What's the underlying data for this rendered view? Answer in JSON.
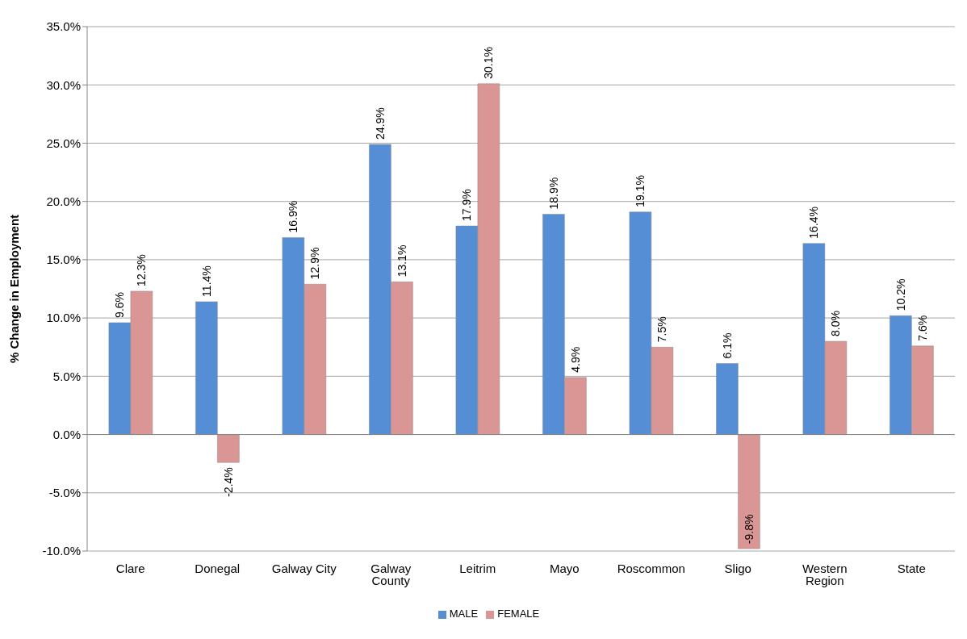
{
  "chart_data": {
    "type": "bar",
    "ylabel": "% Change in Employment",
    "categories": [
      "Clare",
      "Donegal",
      "Galway City",
      "Galway County",
      "Leitrim",
      "Mayo",
      "Roscommon",
      "Sligo",
      "Western Region",
      "State"
    ],
    "series": [
      {
        "name": "MALE",
        "color": "#558ed5",
        "values": [
          9.6,
          11.4,
          16.9,
          24.9,
          17.9,
          18.9,
          19.1,
          6.1,
          16.4,
          10.2
        ],
        "value_labels": [
          "9.6%",
          "11.4%",
          "16.9%",
          "24.9%",
          "17.9%",
          "18.9%",
          "19.1%",
          "6.1%",
          "16.4%",
          "10.2%"
        ]
      },
      {
        "name": "FEMALE",
        "color": "#d99694",
        "values": [
          12.3,
          -2.4,
          12.9,
          13.1,
          30.1,
          4.9,
          7.5,
          -9.8,
          8.0,
          7.6
        ],
        "value_labels": [
          "12.3%",
          "-2.4%",
          "12.9%",
          "13.1%",
          "30.1%",
          "4.9%",
          "7.5%",
          "-9.8%",
          "8.0%",
          "7.6%"
        ]
      }
    ],
    "ylim": [
      -10,
      35
    ],
    "yticks": [
      {
        "value": -10,
        "label": "-10.0%"
      },
      {
        "value": -5,
        "label": "-5.0%"
      },
      {
        "value": 0,
        "label": "0.0%"
      },
      {
        "value": 5,
        "label": "5.0%"
      },
      {
        "value": 10,
        "label": "10.0%"
      },
      {
        "value": 15,
        "label": "15.0%"
      },
      {
        "value": 20,
        "label": "20.0%"
      },
      {
        "value": 25,
        "label": "25.0%"
      },
      {
        "value": 30,
        "label": "30.0%"
      },
      {
        "value": 35,
        "label": "35.0%"
      }
    ],
    "grid": "y",
    "legend": "bottom"
  }
}
